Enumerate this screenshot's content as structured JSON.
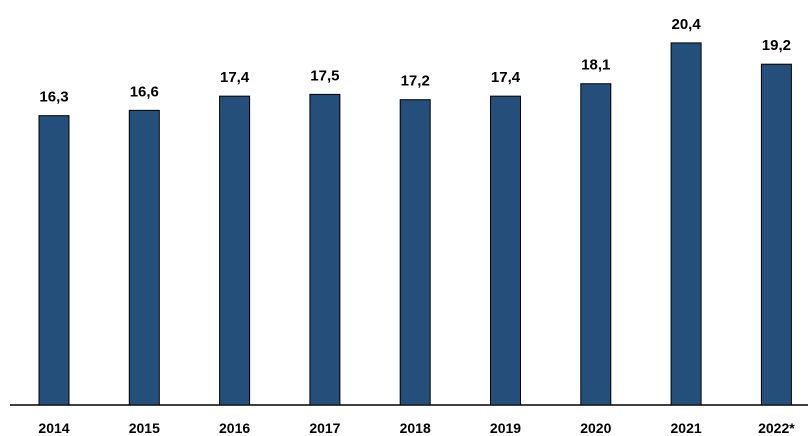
{
  "chart_data": {
    "type": "bar",
    "categories": [
      "2014",
      "2015",
      "2016",
      "2017",
      "2018",
      "2019",
      "2020",
      "2021",
      "2022*"
    ],
    "values": [
      16.3,
      16.6,
      17.4,
      17.5,
      17.2,
      17.4,
      18.1,
      20.4,
      19.2
    ],
    "value_labels": [
      "16,3",
      "16,6",
      "17,4",
      "17,5",
      "17,2",
      "17,4",
      "18,1",
      "20,4",
      "19,2"
    ],
    "color": "#254f7b"
  }
}
